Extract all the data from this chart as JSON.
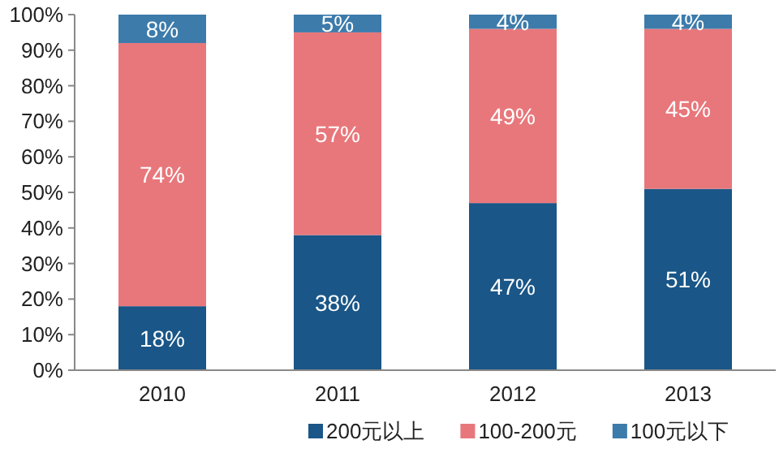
{
  "chart_data": {
    "type": "bar",
    "stacked": true,
    "categories": [
      "2010",
      "2011",
      "2012",
      "2013"
    ],
    "series": [
      {
        "name": "200元以上",
        "color": "#1a5687",
        "values": [
          18,
          38,
          47,
          51
        ],
        "value_labels": [
          "18%",
          "38%",
          "47%",
          "51%"
        ]
      },
      {
        "name": "100-200元",
        "color": "#e8777b",
        "values": [
          74,
          57,
          49,
          45
        ],
        "value_labels": [
          "74%",
          "57%",
          "49%",
          "45%"
        ]
      },
      {
        "name": "100元以下",
        "color": "#3d7bab",
        "values": [
          8,
          5,
          4,
          4
        ],
        "value_labels": [
          "8%",
          "5%",
          "4%",
          "4%"
        ]
      }
    ],
    "ylim": [
      0,
      100
    ],
    "yticks": [
      {
        "value": 0,
        "label": "0%"
      },
      {
        "value": 10,
        "label": "10%"
      },
      {
        "value": 20,
        "label": "20%"
      },
      {
        "value": 30,
        "label": "30%"
      },
      {
        "value": 40,
        "label": "40%"
      },
      {
        "value": 50,
        "label": "50%"
      },
      {
        "value": 60,
        "label": "60%"
      },
      {
        "value": 70,
        "label": "70%"
      },
      {
        "value": 80,
        "label": "80%"
      },
      {
        "value": 90,
        "label": "90%"
      },
      {
        "value": 100,
        "label": "100%"
      }
    ],
    "grid": false,
    "legend": "bottom"
  }
}
